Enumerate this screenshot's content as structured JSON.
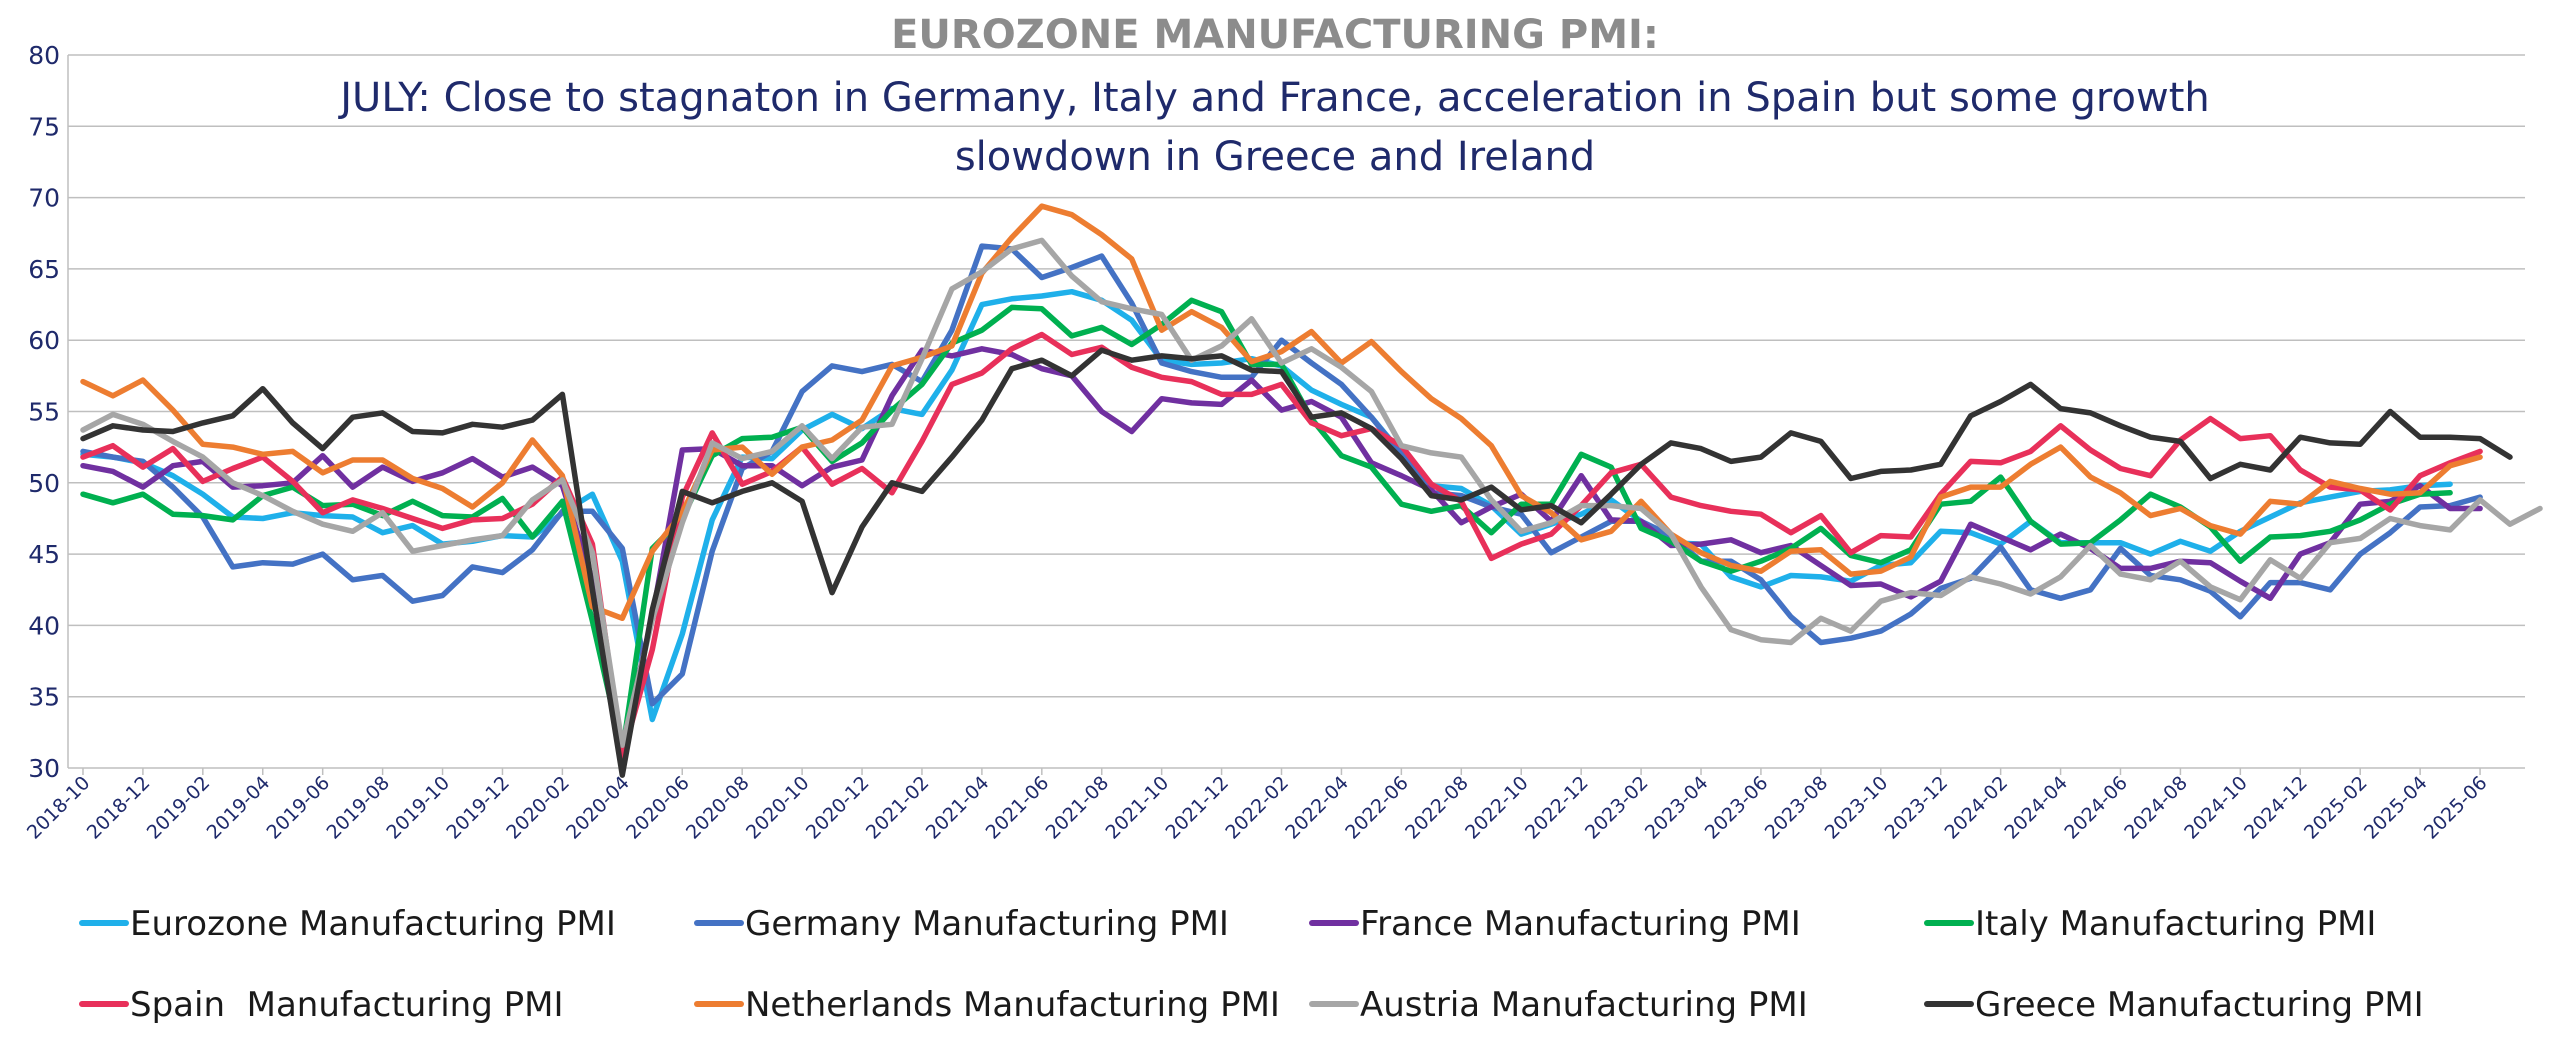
{
  "chart_data": {
    "type": "line",
    "title": "EUROZONE MANUFACTURING PMI:",
    "subtitle_lines": [
      "JULY: Close to stagnaton in Germany, Italy and France, acceleration in Spain but some growth",
      "slowdown in Greece and Ireland"
    ],
    "xlabel": "",
    "ylabel": "",
    "ylim": [
      30,
      80
    ],
    "yticks": [
      30,
      35,
      40,
      45,
      50,
      55,
      60,
      65,
      70,
      75,
      80
    ],
    "grid": true,
    "legend_position": "bottom",
    "x_start": "2018-10",
    "x_end": "2025-07",
    "x_tick_labels": [
      "2018-10",
      "2018-12",
      "2019-02",
      "2019-04",
      "2019-06",
      "2019-08",
      "2019-10",
      "2019-12",
      "2020-02",
      "2020-04",
      "2020-06",
      "2020-08",
      "2020-10",
      "2020-12",
      "2021-02",
      "2021-04",
      "2021-06",
      "2021-08",
      "2021-10",
      "2021-12",
      "2022-02",
      "2022-04",
      "2022-06",
      "2022-08",
      "2022-10",
      "2022-12",
      "2023-02",
      "2023-04",
      "2023-06",
      "2023-08",
      "2023-10",
      "2023-12",
      "2024-02",
      "2024-04",
      "2024-06",
      "2024-08",
      "2024-10",
      "2024-12",
      "2025-02",
      "2025-04",
      "2025-06"
    ],
    "series": [
      {
        "name": "Eurozone Manufacturing PMI",
        "color": "#1fb0ea",
        "values": [
          52,
          51.8,
          51.4,
          50.5,
          49.2,
          47.6,
          47.5,
          47.9,
          47.7,
          47.6,
          46.5,
          47,
          45.7,
          45.9,
          46.3,
          46.2,
          47.9,
          49.2,
          44.5,
          33.4,
          39.4,
          47.4,
          51.8,
          51.7,
          53.7,
          54.8,
          53.8,
          55.2,
          54.8,
          57.9,
          62.5,
          62.9,
          63.1,
          63.4,
          62.8,
          61.4,
          58.6,
          58.3,
          58.4,
          58.7,
          58.2,
          56.5,
          55.5,
          54.6,
          52.1,
          49.8,
          49.6,
          48.4,
          46.4,
          47.1,
          47.8,
          48.8,
          47.3,
          45.8,
          45.7,
          43.4,
          42.7,
          43.5,
          43.4,
          43.1,
          44.2,
          44.4,
          46.6,
          46.5,
          45.7,
          47.3,
          45.8,
          45.8,
          45.8,
          45,
          45.9,
          45.2,
          46.6,
          47.6,
          48.6,
          49,
          49.4,
          49.5,
          49.8,
          49.9
        ]
      },
      {
        "name": "Germany Manufacturing PMI",
        "color": "#4472c4",
        "values": [
          52.2,
          51.8,
          51.5,
          49.7,
          47.6,
          44.1,
          44.4,
          44.3,
          45,
          43.2,
          43.5,
          41.7,
          42.1,
          44.1,
          43.7,
          45.3,
          48,
          48,
          45.4,
          34.5,
          36.6,
          45.2,
          51,
          52.2,
          56.4,
          58.2,
          57.8,
          58.3,
          57.1,
          60.7,
          66.6,
          66.4,
          64.4,
          65.1,
          65.9,
          62.6,
          58.4,
          57.8,
          57.4,
          57.4,
          60,
          58.4,
          56.9,
          54.6,
          52,
          49.3,
          49.1,
          48.3,
          47.8,
          45.1,
          46.2,
          47.3,
          47.3,
          46.3,
          44.5,
          44.5,
          43.2,
          40.6,
          38.8,
          39.1,
          39.6,
          40.8,
          42.6,
          43.3,
          45.5,
          42.5,
          41.9,
          42.5,
          45.4,
          43.5,
          43.2,
          42.4,
          40.6,
          43,
          43,
          42.5,
          45,
          46.5,
          48.3,
          48.4,
          49
        ]
      },
      {
        "name": "France Manufacturing PMI",
        "color": "#7030a0",
        "values": [
          51.2,
          50.8,
          49.7,
          51.2,
          51.5,
          49.7,
          49.8,
          50,
          51.9,
          49.7,
          51.1,
          50.1,
          50.7,
          51.7,
          50.4,
          51.1,
          49.8,
          43.2,
          31.5,
          40.6,
          52.3,
          52.4,
          51.2,
          51.2,
          49.8,
          51.1,
          51.6,
          56.1,
          59.3,
          58.9,
          59.4,
          59,
          58,
          57.5,
          55,
          53.6,
          55.9,
          55.6,
          55.5,
          57.2,
          55.1,
          55.7,
          54.6,
          51.4,
          50.5,
          49.5,
          47.2,
          48.3,
          49.2,
          47.3,
          50.5,
          47.4,
          47.3,
          45.6,
          45.7,
          46,
          45.1,
          45.6,
          44.2,
          42.8,
          42.9,
          42,
          43.1,
          47.1,
          46.2,
          45.3,
          46.4,
          45.4,
          44,
          44,
          44.5,
          44.4,
          43.1,
          41.9,
          45,
          45.8,
          48.5,
          48.7,
          49.8,
          48.2,
          48.2
        ]
      },
      {
        "name": "Italy Manufacturing PMI",
        "color": "#00b050",
        "values": [
          49.2,
          48.6,
          49.2,
          47.8,
          47.7,
          47.4,
          49.1,
          49.7,
          48.4,
          48.5,
          47.7,
          48.7,
          47.7,
          47.6,
          48.9,
          46.2,
          48.7,
          40.3,
          31.1,
          45.4,
          47.5,
          51.9,
          53.1,
          53.2,
          53.9,
          51.5,
          52.8,
          55.1,
          56.9,
          59.8,
          60.7,
          62.3,
          62.2,
          60.3,
          60.9,
          59.7,
          61.1,
          62.8,
          62,
          58.3,
          58.3,
          54.5,
          51.9,
          51.1,
          48.5,
          48,
          48.4,
          46.5,
          48.5,
          48.5,
          52,
          51.1,
          46.8,
          45.9,
          44.5,
          43.8,
          44.5,
          45.4,
          46.8,
          44.9,
          44.4,
          45.3,
          48.5,
          48.7,
          50.4,
          47.3,
          45.7,
          45.8,
          47.4,
          49.2,
          48.3,
          46.9,
          44.5,
          46.2,
          46.3,
          46.6,
          47.4,
          48.5,
          49.2,
          49.3
        ]
      },
      {
        "name": "Spain  Manufacturing PMI",
        "color": "#e8305a",
        "values": [
          51.8,
          52.6,
          51.1,
          52.4,
          50.1,
          51,
          51.8,
          50.1,
          47.9,
          48.8,
          48.2,
          47.5,
          46.8,
          47.4,
          47.5,
          48.5,
          50.4,
          45.7,
          30.8,
          38.3,
          49,
          53.5,
          49.9,
          50.8,
          52.5,
          49.9,
          51,
          49.3,
          52.9,
          56.9,
          57.7,
          59.4,
          60.4,
          59,
          59.5,
          58.1,
          57.4,
          57.1,
          56.2,
          56.2,
          56.9,
          54.2,
          53.3,
          53.8,
          52.6,
          49.9,
          48.7,
          44.7,
          45.7,
          46.4,
          48.4,
          50.7,
          51.3,
          49,
          48.4,
          48,
          47.8,
          46.5,
          47.7,
          45.1,
          46.3,
          46.2,
          49.2,
          51.5,
          51.4,
          52.2,
          54,
          52.3,
          51,
          50.5,
          53,
          54.5,
          53.1,
          53.3,
          50.9,
          49.7,
          49.5,
          48.1,
          50.5,
          51.4,
          52.2
        ]
      },
      {
        "name": "Netherlands Manufacturing PMI",
        "color": "#ed7d31",
        "values": [
          57.1,
          56.1,
          57.2,
          55.1,
          52.7,
          52.5,
          52,
          52.2,
          50.7,
          51.6,
          51.6,
          50.3,
          49.6,
          48.3,
          50,
          53,
          50.5,
          41.3,
          40.5,
          45.2,
          47.9,
          52.3,
          52.5,
          50.6,
          52.5,
          53,
          54.4,
          58.2,
          58.8,
          59.6,
          64.7,
          67.2,
          69.4,
          68.8,
          67.4,
          65.7,
          60.7,
          62,
          60.9,
          58.5,
          59.2,
          60.6,
          58.4,
          59.9,
          57.8,
          55.9,
          54.5,
          52.6,
          49.1,
          47.9,
          46,
          46.6,
          48.7,
          46.4,
          45.1,
          44.2,
          43.8,
          45.2,
          45.3,
          43.6,
          43.8,
          44.8,
          49,
          49.7,
          49.7,
          51.3,
          52.5,
          50.4,
          49.3,
          47.7,
          48.2,
          47,
          46.4,
          48.7,
          48.5,
          50.1,
          49.6,
          49.2,
          49.3,
          51.2,
          51.8
        ]
      },
      {
        "name": "Austria Manufacturing PMI",
        "color": "#a6a6a6",
        "values": [
          53.7,
          54.8,
          54.1,
          52.9,
          51.8,
          50,
          49.1,
          48,
          47.1,
          46.6,
          47.9,
          45.2,
          45.6,
          46,
          46.3,
          48.8,
          50.2,
          45.1,
          31.6,
          40.4,
          47.2,
          52.8,
          51.7,
          52.2,
          54,
          51.7,
          53.9,
          54.1,
          58.7,
          63.6,
          64.8,
          66.4,
          67,
          64.5,
          62.7,
          62.2,
          61.8,
          58.6,
          59.6,
          61.5,
          58.4,
          59.4,
          58.1,
          56.4,
          52.6,
          52.1,
          51.8,
          48.8,
          46.6,
          47.2,
          48.4,
          48.4,
          48.2,
          46.4,
          42.7,
          39.7,
          39,
          38.8,
          40.5,
          39.6,
          41.7,
          42.3,
          42.1,
          43.4,
          42.9,
          42.2,
          43.4,
          45.6,
          43.6,
          43.2,
          44.5,
          42.7,
          41.8,
          44.6,
          43.3,
          45.8,
          46.1,
          47.5,
          47,
          46.7,
          48.8,
          47.1,
          48.2
        ]
      },
      {
        "name": "Greece Manufacturing PMI",
        "color": "#333333",
        "values": [
          53.1,
          54,
          53.7,
          53.6,
          54.2,
          54.7,
          56.6,
          54.2,
          52.4,
          54.6,
          54.9,
          53.6,
          53.5,
          54.1,
          53.9,
          54.4,
          56.2,
          42.5,
          29.5,
          41.1,
          49.4,
          48.6,
          49.4,
          50,
          48.7,
          42.3,
          46.9,
          50,
          49.4,
          51.8,
          54.4,
          58,
          58.6,
          57.5,
          59.3,
          58.6,
          58.9,
          58.7,
          58.9,
          57.9,
          57.8,
          54.6,
          54.9,
          53.8,
          51.7,
          49.1,
          48.8,
          49.7,
          48.1,
          48.4,
          47.2,
          49.2,
          51.3,
          52.8,
          52.4,
          51.5,
          51.8,
          53.5,
          52.9,
          50.3,
          50.8,
          50.9,
          51.3,
          54.7,
          55.7,
          56.9,
          55.2,
          54.9,
          54,
          53.2,
          52.9,
          50.3,
          51.3,
          50.9,
          53.2,
          52.8,
          52.7,
          55,
          53.2,
          53.2,
          53.1,
          51.8
        ]
      }
    ]
  }
}
